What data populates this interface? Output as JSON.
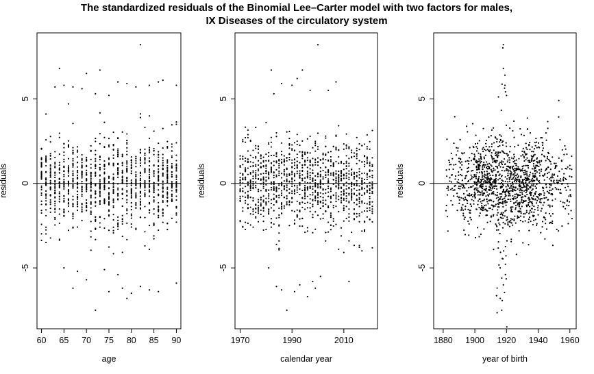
{
  "title_lines": [
    "The standardized residuals of the Binomial Lee–Carter model with two factors for males,",
    "IX Diseases of the circulatory system"
  ],
  "chart_data": [
    {
      "type": "scatter",
      "xlabel": "age",
      "ylabel": "residuals",
      "xlim": [
        59,
        91
      ],
      "ylim": [
        -8.6,
        8.9
      ],
      "xticks": [
        60,
        65,
        70,
        75,
        80,
        85,
        90
      ],
      "yticks": [
        -5,
        0,
        5
      ],
      "reference_line_y": 0,
      "x_domain": "integer ages 60 to 90",
      "residual_spread_sd": 1.3,
      "outliers": [
        [
          61,
          4.1
        ],
        [
          63,
          5.7
        ],
        [
          64,
          6.8
        ],
        [
          65,
          5.8
        ],
        [
          66,
          4.7
        ],
        [
          67,
          5.7
        ],
        [
          69,
          5.6
        ],
        [
          70,
          6.5
        ],
        [
          72,
          5.3
        ],
        [
          73,
          6.7
        ],
        [
          75,
          5.2
        ],
        [
          77,
          6.0
        ],
        [
          79,
          5.9
        ],
        [
          81,
          5.7
        ],
        [
          82,
          8.2
        ],
        [
          84,
          5.8
        ],
        [
          86,
          6.0
        ],
        [
          87,
          6.1
        ],
        [
          90,
          5.8
        ],
        [
          65,
          -5.0
        ],
        [
          67,
          -6.2
        ],
        [
          68,
          -5.2
        ],
        [
          70,
          -5.7
        ],
        [
          74,
          -5.1
        ],
        [
          75,
          -6.4
        ],
        [
          77,
          -5.4
        ],
        [
          78,
          -6.2
        ],
        [
          79,
          -6.8
        ],
        [
          80,
          -6.5
        ],
        [
          82,
          -6.1
        ],
        [
          84,
          -6.3
        ],
        [
          86,
          -6.4
        ],
        [
          90,
          -5.9
        ],
        [
          72,
          -7.5
        ]
      ]
    },
    {
      "type": "scatter",
      "xlabel": "calendar year",
      "ylabel": "residuals",
      "xlim": [
        1968,
        2023
      ],
      "ylim": [
        -8.6,
        8.9
      ],
      "xticks": [
        1970,
        1990,
        2010
      ],
      "yticks": [
        -5,
        0,
        5
      ],
      "reference_line_y": 0,
      "x_domain": "years 1970 to 2021",
      "residual_spread_sd": 1.3,
      "outliers": [
        [
          1982,
          6.7
        ],
        [
          1986,
          5.9
        ],
        [
          1992,
          6.2
        ],
        [
          1994,
          6.7
        ],
        [
          1997,
          5.5
        ],
        [
          2000,
          8.2
        ],
        [
          2004,
          5.5
        ],
        [
          2007,
          6.0
        ],
        [
          1983,
          5.3
        ],
        [
          1990,
          5.8
        ],
        [
          1981,
          -5.0
        ],
        [
          1984,
          -6.1
        ],
        [
          1986,
          -6.3
        ],
        [
          1988,
          -7.5
        ],
        [
          1991,
          -6.4
        ],
        [
          1993,
          -6.0
        ],
        [
          1996,
          -6.7
        ],
        [
          1998,
          -5.8
        ],
        [
          2001,
          -5.5
        ],
        [
          2012,
          -5.8
        ],
        [
          1999,
          -6.2
        ]
      ]
    },
    {
      "type": "scatter",
      "xlabel": "year of birth",
      "ylabel": "residuals",
      "xlim": [
        1874,
        1964
      ],
      "ylim": [
        -8.6,
        8.9
      ],
      "xticks": [
        1880,
        1900,
        1920,
        1940,
        1960
      ],
      "yticks": [
        -5,
        0,
        5
      ],
      "reference_line_y": 0,
      "x_domain": "cohorts 1882 to 1961",
      "residual_spread_sd": 1.3,
      "outliers": [
        [
          1918,
          6.8
        ],
        [
          1919,
          6.4
        ],
        [
          1918,
          8.2
        ],
        [
          1917,
          -5.6
        ],
        [
          1918,
          -6.0
        ],
        [
          1917,
          -7.5
        ],
        [
          1916,
          -5.0
        ],
        [
          1919,
          5.8
        ],
        [
          1953,
          4.9
        ],
        [
          1920,
          5.2
        ],
        [
          1916,
          -6.8
        ]
      ]
    }
  ]
}
